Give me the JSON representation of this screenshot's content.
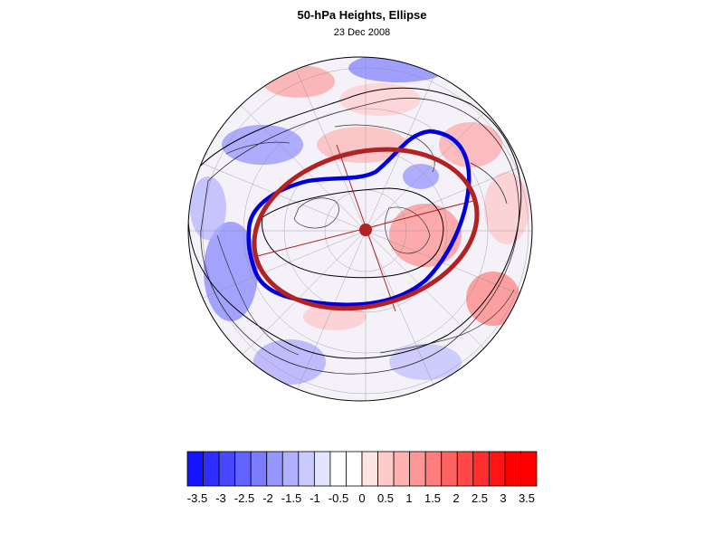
{
  "title": "50-hPa Heights, Ellipse",
  "subtitle": "23 Dec 2008",
  "map": {
    "projection": "north-polar-stereographic",
    "field": "height anomaly",
    "contours": [
      {
        "name": "observed-vortex-edge",
        "color": "#0000dd"
      },
      {
        "name": "fitted-ellipse",
        "color": "#b22222"
      }
    ],
    "center_marker_color": "#b22222"
  },
  "colorbar": {
    "colors": [
      "#1414ff",
      "#2e2eff",
      "#4848ff",
      "#6262ff",
      "#7c7cff",
      "#9696ff",
      "#b0b0ff",
      "#caca ff",
      "#e4e4ff",
      "#ffffff",
      "#ffffff",
      "#ffe4e4",
      "#ffcaca",
      "#ffb0b0",
      "#ff9696",
      "#ff7c7c",
      "#ff6262",
      "#ff4848",
      "#ff2e2e",
      "#ff1414",
      "#ff0000",
      "#ff0000"
    ],
    "tick_labels": [
      "-3.5",
      "-3",
      "-2.5",
      "-2",
      "-1.5",
      "-1",
      "-0.5",
      "0",
      "0.5",
      "1",
      "1.5",
      "2",
      "2.5",
      "3",
      "3.5"
    ]
  }
}
